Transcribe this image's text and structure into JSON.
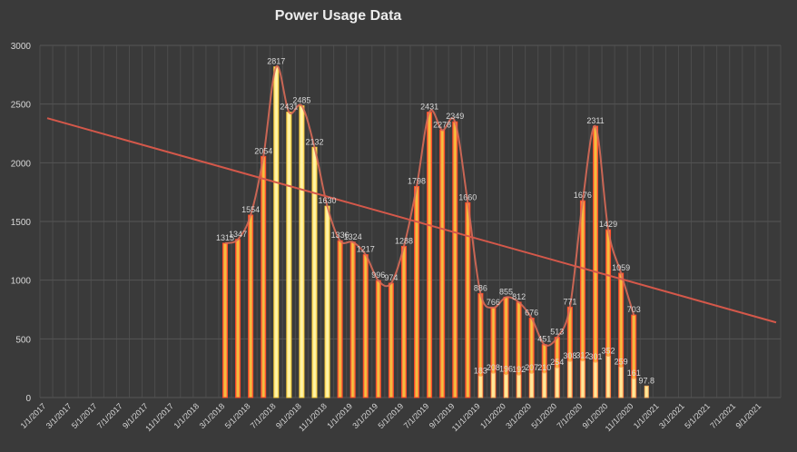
{
  "chart_data": {
    "type": "bar",
    "title": "Power Usage Data",
    "xlabel": "",
    "ylabel": "",
    "ylim": [
      0,
      3000
    ],
    "yticks": [
      0,
      500,
      1000,
      1500,
      2000,
      2500,
      3000
    ],
    "xticks": [
      "1/1/2017",
      "3/1/2017",
      "5/1/2017",
      "7/1/2017",
      "9/1/2017",
      "11/1/2017",
      "1/1/2018",
      "3/1/2018",
      "5/1/2018",
      "7/1/2018",
      "9/1/2018",
      "11/1/2018",
      "1/1/2019",
      "3/1/2019",
      "5/1/2019",
      "7/1/2019",
      "9/1/2019",
      "11/1/2019",
      "1/1/2020",
      "3/1/2020",
      "5/1/2020",
      "7/1/2020",
      "9/1/2020",
      "11/1/2020",
      "1/1/2021",
      "3/1/2021",
      "5/1/2021",
      "7/1/2021",
      "9/1/2021"
    ],
    "grid": true,
    "legend": "none",
    "series": [
      {
        "values": [
          1315,
          1347,
          1554,
          2054,
          2817,
          2431,
          2485,
          2132,
          1630,
          1336,
          1324,
          1217,
          996,
          974,
          1288,
          1798,
          2431,
          2278,
          2349,
          1660,
          886,
          766,
          855,
          812,
          676,
          451,
          513,
          771,
          1676,
          2311,
          1429,
          1059,
          703
        ],
        "colors": [
          "#f04a28",
          "#ffb020"
        ]
      },
      {
        "values": [
          183,
          208,
          196,
          192,
          207,
          210,
          254,
          308,
          312,
          301,
          352,
          259,
          161,
          97.8
        ]
      }
    ],
    "trend_line": {
      "start_value": 2380,
      "end_value": 640
    },
    "colors": {
      "bar": "#e8542e",
      "highlight": "#f0d040",
      "smooth": "#d86a58",
      "trend": "#d4584a",
      "text": "#d8d8d8"
    }
  }
}
